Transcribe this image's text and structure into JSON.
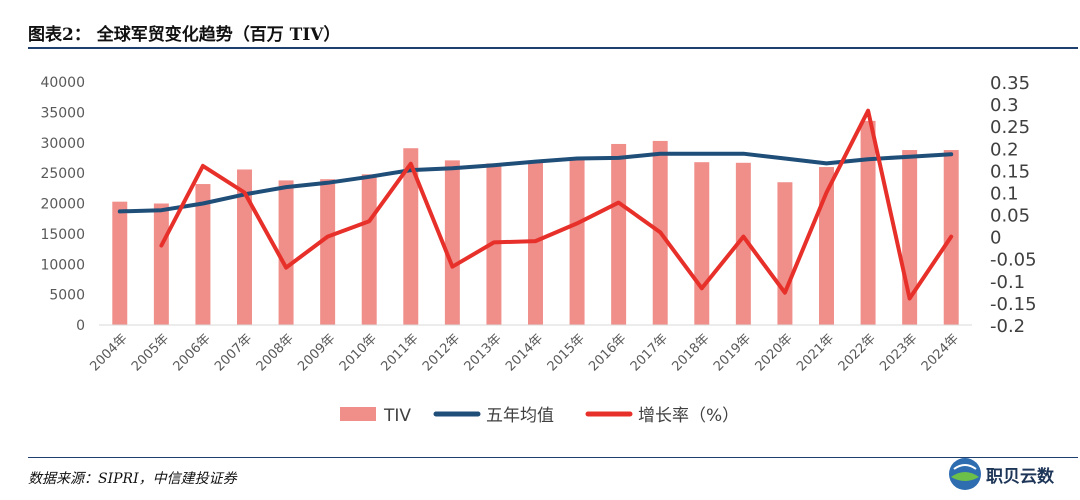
{
  "header": {
    "title": "图表2： 全球军贸变化趋势（百万 TIV）"
  },
  "footer": {
    "source": "数据来源：SIPRI，中信建投证券",
    "logo_text": "职贝云数"
  },
  "colors": {
    "bar": "#f08e8a",
    "avg_line": "#1f4e79",
    "growth_line": "#e8302a",
    "title_rule": "#1f3f6e"
  },
  "chart_data": {
    "type": "bar",
    "categories": [
      "2004年",
      "2005年",
      "2006年",
      "2007年",
      "2008年",
      "2009年",
      "2010年",
      "2011年",
      "2012年",
      "2013年",
      "2014年",
      "2015年",
      "2016年",
      "2017年",
      "2018年",
      "2019年",
      "2020年",
      "2021年",
      "2022年",
      "2023年",
      "2024年"
    ],
    "series": [
      {
        "name": "TIV",
        "type": "bar",
        "axis": "left",
        "values": [
          20300,
          20000,
          23200,
          25600,
          23800,
          24000,
          24800,
          29100,
          27100,
          26600,
          26800,
          27300,
          29800,
          30300,
          26800,
          26700,
          23500,
          26000,
          33600,
          28800,
          28800
        ]
      },
      {
        "name": "五年均值",
        "type": "line",
        "axis": "left",
        "values": [
          18700,
          18900,
          20000,
          21500,
          22700,
          23400,
          24400,
          25500,
          25800,
          26300,
          26900,
          27400,
          27500,
          28200,
          28200,
          28200,
          27400,
          26600,
          27300,
          27700,
          28100
        ]
      },
      {
        "name": "增长率（%）",
        "type": "line",
        "axis": "right",
        "values": [
          null,
          -0.02,
          0.16,
          0.1,
          -0.07,
          0.0,
          0.035,
          0.165,
          -0.068,
          -0.013,
          -0.01,
          0.03,
          0.077,
          0.01,
          -0.117,
          0.0,
          -0.127,
          0.1,
          0.285,
          -0.14,
          0.0
        ]
      }
    ],
    "y_left": {
      "min": 0,
      "max": 40000,
      "ticks": [
        "0",
        "5000",
        "10000",
        "15000",
        "20000",
        "25000",
        "30000",
        "35000",
        "40000"
      ]
    },
    "y_right": {
      "min": -0.2,
      "max": 0.35,
      "ticks": [
        "-0.2",
        "-0.15",
        "-0.1",
        "-0.05",
        "0",
        "0.05",
        "0.1",
        "0.15",
        "0.2",
        "0.25",
        "0.3",
        "0.35"
      ]
    },
    "grid": false,
    "legend": "bottom-center"
  }
}
